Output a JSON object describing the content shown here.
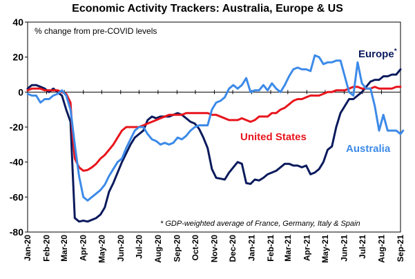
{
  "chart_data": {
    "type": "line",
    "title": "Economic Activity Trackers: Australia, Europe & US",
    "annotation": "% change from pre-COVID levels",
    "footnote": "* GDP-weighted average of France, Germany, Italy & Spain",
    "ylim": [
      -80,
      40
    ],
    "yticks": [
      "40",
      "20",
      "0",
      "-20",
      "-40",
      "-60",
      "-80"
    ],
    "xlim": [
      0,
      87
    ],
    "xticks": [
      {
        "x": 0,
        "label": "Jan-20"
      },
      {
        "x": 4.43,
        "label": "Feb-20"
      },
      {
        "x": 8.57,
        "label": "Mar-20"
      },
      {
        "x": 13,
        "label": "Apr-20"
      },
      {
        "x": 17.29,
        "label": "May-20"
      },
      {
        "x": 21.71,
        "label": "Jun-20"
      },
      {
        "x": 26,
        "label": "Jul-20"
      },
      {
        "x": 30.43,
        "label": "Aug-20"
      },
      {
        "x": 34.86,
        "label": "Sep-20"
      },
      {
        "x": 39.14,
        "label": "Oct-20"
      },
      {
        "x": 43.57,
        "label": "Nov-20"
      },
      {
        "x": 47.86,
        "label": "Dec-20"
      },
      {
        "x": 52.29,
        "label": "Jan-21"
      },
      {
        "x": 56.71,
        "label": "Feb-21"
      },
      {
        "x": 60.71,
        "label": "Mar-21"
      },
      {
        "x": 65.14,
        "label": "Apr-21"
      },
      {
        "x": 69.43,
        "label": "May-21"
      },
      {
        "x": 73.86,
        "label": "Jun-21"
      },
      {
        "x": 78.14,
        "label": "Jul-21"
      },
      {
        "x": 82.57,
        "label": "Aug-21"
      },
      {
        "x": 87,
        "label": "Sep-21"
      }
    ],
    "series": [
      {
        "name": "Europe*",
        "color": "#0a1a5c",
        "points": [
          [
            0,
            2
          ],
          [
            1,
            4
          ],
          [
            2,
            4
          ],
          [
            3,
            3
          ],
          [
            4,
            2
          ],
          [
            5,
            0
          ],
          [
            6,
            2
          ],
          [
            7,
            0
          ],
          [
            8,
            -2
          ],
          [
            9,
            -10
          ],
          [
            10,
            -17
          ],
          [
            10.5,
            -45
          ],
          [
            11,
            -72
          ],
          [
            12,
            -74
          ],
          [
            13,
            -73.5
          ],
          [
            14,
            -74
          ],
          [
            15,
            -73
          ],
          [
            16,
            -72
          ],
          [
            17,
            -70
          ],
          [
            18,
            -66
          ],
          [
            19,
            -57
          ],
          [
            20,
            -52
          ],
          [
            21,
            -46
          ],
          [
            22,
            -40
          ],
          [
            23,
            -35
          ],
          [
            24,
            -30
          ],
          [
            25,
            -26
          ],
          [
            26,
            -24
          ],
          [
            27,
            -22
          ],
          [
            28,
            -16
          ],
          [
            29,
            -14
          ],
          [
            30,
            -15
          ],
          [
            31,
            -14
          ],
          [
            32,
            -14
          ],
          [
            33,
            -14
          ],
          [
            34,
            -13
          ],
          [
            35,
            -12
          ],
          [
            36,
            -13
          ],
          [
            37,
            -15
          ],
          [
            38,
            -17
          ],
          [
            39,
            -18
          ],
          [
            40,
            -21
          ],
          [
            41,
            -26
          ],
          [
            42,
            -32
          ],
          [
            43,
            -44
          ],
          [
            44,
            -49
          ],
          [
            45,
            -49.5
          ],
          [
            46,
            -50
          ],
          [
            47,
            -46
          ],
          [
            48,
            -43
          ],
          [
            49,
            -40
          ],
          [
            50,
            -41
          ],
          [
            51,
            -52
          ],
          [
            52,
            -52.5
          ],
          [
            53,
            -50
          ],
          [
            54,
            -50.5
          ],
          [
            55,
            -49
          ],
          [
            56,
            -47
          ],
          [
            57,
            -46
          ],
          [
            58,
            -45
          ],
          [
            59,
            -43
          ],
          [
            60,
            -41
          ],
          [
            61,
            -41
          ],
          [
            62,
            -42
          ],
          [
            63,
            -42
          ],
          [
            64,
            -43
          ],
          [
            65,
            -42
          ],
          [
            66,
            -47
          ],
          [
            67,
            -46
          ],
          [
            68,
            -44
          ],
          [
            69,
            -40
          ],
          [
            70,
            -33
          ],
          [
            71,
            -31
          ],
          [
            72,
            -20
          ],
          [
            73,
            -12
          ],
          [
            74,
            -8
          ],
          [
            75,
            -4
          ],
          [
            76,
            -4
          ],
          [
            77,
            -2
          ],
          [
            78,
            0
          ],
          [
            79,
            3
          ],
          [
            80,
            6
          ],
          [
            81,
            7
          ],
          [
            82,
            7
          ],
          [
            83,
            9
          ],
          [
            84,
            9
          ],
          [
            85,
            10
          ],
          [
            86,
            10
          ],
          [
            87,
            13
          ]
        ]
      },
      {
        "name": "United States",
        "color": "#e8141c",
        "points": [
          [
            0,
            1
          ],
          [
            1,
            2
          ],
          [
            2,
            2
          ],
          [
            3,
            2
          ],
          [
            4,
            1
          ],
          [
            5,
            1
          ],
          [
            6,
            1
          ],
          [
            7,
            1
          ],
          [
            8,
            0
          ],
          [
            9,
            -1
          ],
          [
            10,
            -6
          ],
          [
            10.5,
            -25
          ],
          [
            11,
            -38
          ],
          [
            12,
            -43
          ],
          [
            13,
            -45
          ],
          [
            14,
            -44.5
          ],
          [
            15,
            -43
          ],
          [
            16,
            -41
          ],
          [
            17,
            -38
          ],
          [
            18,
            -36
          ],
          [
            19,
            -33
          ],
          [
            20,
            -30
          ],
          [
            21,
            -26
          ],
          [
            22,
            -22
          ],
          [
            23,
            -20
          ],
          [
            24,
            -20
          ],
          [
            25,
            -20
          ],
          [
            26,
            -20
          ],
          [
            27,
            -19
          ],
          [
            28,
            -18
          ],
          [
            29,
            -17
          ],
          [
            30,
            -16
          ],
          [
            31,
            -15
          ],
          [
            32,
            -14
          ],
          [
            33,
            -13
          ],
          [
            34,
            -13
          ],
          [
            35,
            -13
          ],
          [
            36,
            -13
          ],
          [
            37,
            -12
          ],
          [
            38,
            -12
          ],
          [
            39,
            -12
          ],
          [
            40,
            -12
          ],
          [
            41,
            -12
          ],
          [
            42,
            -12
          ],
          [
            43,
            -13
          ],
          [
            44,
            -13
          ],
          [
            45,
            -14
          ],
          [
            46,
            -15
          ],
          [
            47,
            -16
          ],
          [
            48,
            -16
          ],
          [
            49,
            -16
          ],
          [
            50,
            -15
          ],
          [
            51,
            -16
          ],
          [
            52,
            -17
          ],
          [
            53,
            -16
          ],
          [
            54,
            -14
          ],
          [
            55,
            -14
          ],
          [
            56,
            -14
          ],
          [
            57,
            -12
          ],
          [
            58,
            -12
          ],
          [
            59,
            -10
          ],
          [
            60,
            -9
          ],
          [
            61,
            -7
          ],
          [
            62,
            -5
          ],
          [
            63,
            -4
          ],
          [
            64,
            -4
          ],
          [
            65,
            -3
          ],
          [
            66,
            -2
          ],
          [
            67,
            -2
          ],
          [
            68,
            -2
          ],
          [
            69,
            -1
          ],
          [
            70,
            0
          ],
          [
            71,
            0
          ],
          [
            72,
            1
          ],
          [
            73,
            1
          ],
          [
            74,
            1
          ],
          [
            75,
            2
          ],
          [
            76,
            3
          ],
          [
            77,
            3
          ],
          [
            78,
            2
          ],
          [
            79,
            2
          ],
          [
            80,
            2
          ],
          [
            81,
            3
          ],
          [
            82,
            2
          ],
          [
            83,
            2
          ],
          [
            84,
            2
          ],
          [
            85,
            2
          ],
          [
            86,
            3
          ],
          [
            87,
            3
          ]
        ]
      },
      {
        "name": "Australia",
        "color": "#3c8ae8",
        "points": [
          [
            0,
            -1
          ],
          [
            1,
            -2
          ],
          [
            2,
            -2
          ],
          [
            3,
            -6
          ],
          [
            4,
            -4
          ],
          [
            5,
            -4
          ],
          [
            6,
            -2
          ],
          [
            7,
            -1
          ],
          [
            8,
            1
          ],
          [
            9,
            -2
          ],
          [
            10,
            -10
          ],
          [
            11,
            -30
          ],
          [
            12,
            -48
          ],
          [
            13,
            -60
          ],
          [
            14,
            -62
          ],
          [
            15,
            -60
          ],
          [
            16,
            -58
          ],
          [
            17,
            -56
          ],
          [
            18,
            -53
          ],
          [
            19,
            -48
          ],
          [
            20,
            -44
          ],
          [
            21,
            -40
          ],
          [
            22,
            -38
          ],
          [
            23,
            -32
          ],
          [
            24,
            -27
          ],
          [
            25,
            -22
          ],
          [
            26,
            -20
          ],
          [
            27,
            -20
          ],
          [
            28,
            -24
          ],
          [
            29,
            -27
          ],
          [
            30,
            -28
          ],
          [
            31,
            -30
          ],
          [
            32,
            -29
          ],
          [
            33,
            -30
          ],
          [
            34,
            -29
          ],
          [
            35,
            -26
          ],
          [
            36,
            -27
          ],
          [
            37,
            -25
          ],
          [
            38,
            -22
          ],
          [
            39,
            -20
          ],
          [
            40,
            -19
          ],
          [
            41,
            -19
          ],
          [
            42,
            -19
          ],
          [
            43,
            -10
          ],
          [
            44,
            -6
          ],
          [
            45,
            -5
          ],
          [
            46,
            -3
          ],
          [
            47,
            2
          ],
          [
            48,
            4
          ],
          [
            49,
            2
          ],
          [
            50,
            4
          ],
          [
            51,
            8
          ],
          [
            52,
            0
          ],
          [
            53,
            1
          ],
          [
            54,
            1
          ],
          [
            55,
            4
          ],
          [
            56,
            1
          ],
          [
            57,
            5
          ],
          [
            58,
            2
          ],
          [
            59,
            0
          ],
          [
            60,
            4
          ],
          [
            61,
            9
          ],
          [
            62,
            13
          ],
          [
            63,
            14
          ],
          [
            64,
            13
          ],
          [
            65,
            13
          ],
          [
            66,
            12
          ],
          [
            67,
            21
          ],
          [
            68,
            20
          ],
          [
            69,
            16
          ],
          [
            70,
            17
          ],
          [
            71,
            17
          ],
          [
            72,
            18
          ],
          [
            73,
            18
          ],
          [
            74,
            9
          ],
          [
            75,
            0
          ],
          [
            76,
            -2
          ],
          [
            77,
            17
          ],
          [
            78,
            5
          ],
          [
            79,
            2
          ],
          [
            80,
            2
          ],
          [
            81,
            -8
          ],
          [
            82,
            -22
          ],
          [
            83,
            -13
          ],
          [
            84,
            -22
          ],
          [
            85,
            -22
          ],
          [
            86,
            -22
          ],
          [
            87,
            -24
          ],
          [
            87.6,
            -22
          ]
        ]
      }
    ],
    "series_labels": [
      {
        "text": "Europe",
        "suffix": "*",
        "color": "#0a1a5c"
      },
      {
        "text": "United States",
        "color": "#e8141c"
      },
      {
        "text": "Australia",
        "color": "#3c8ae8"
      }
    ]
  }
}
